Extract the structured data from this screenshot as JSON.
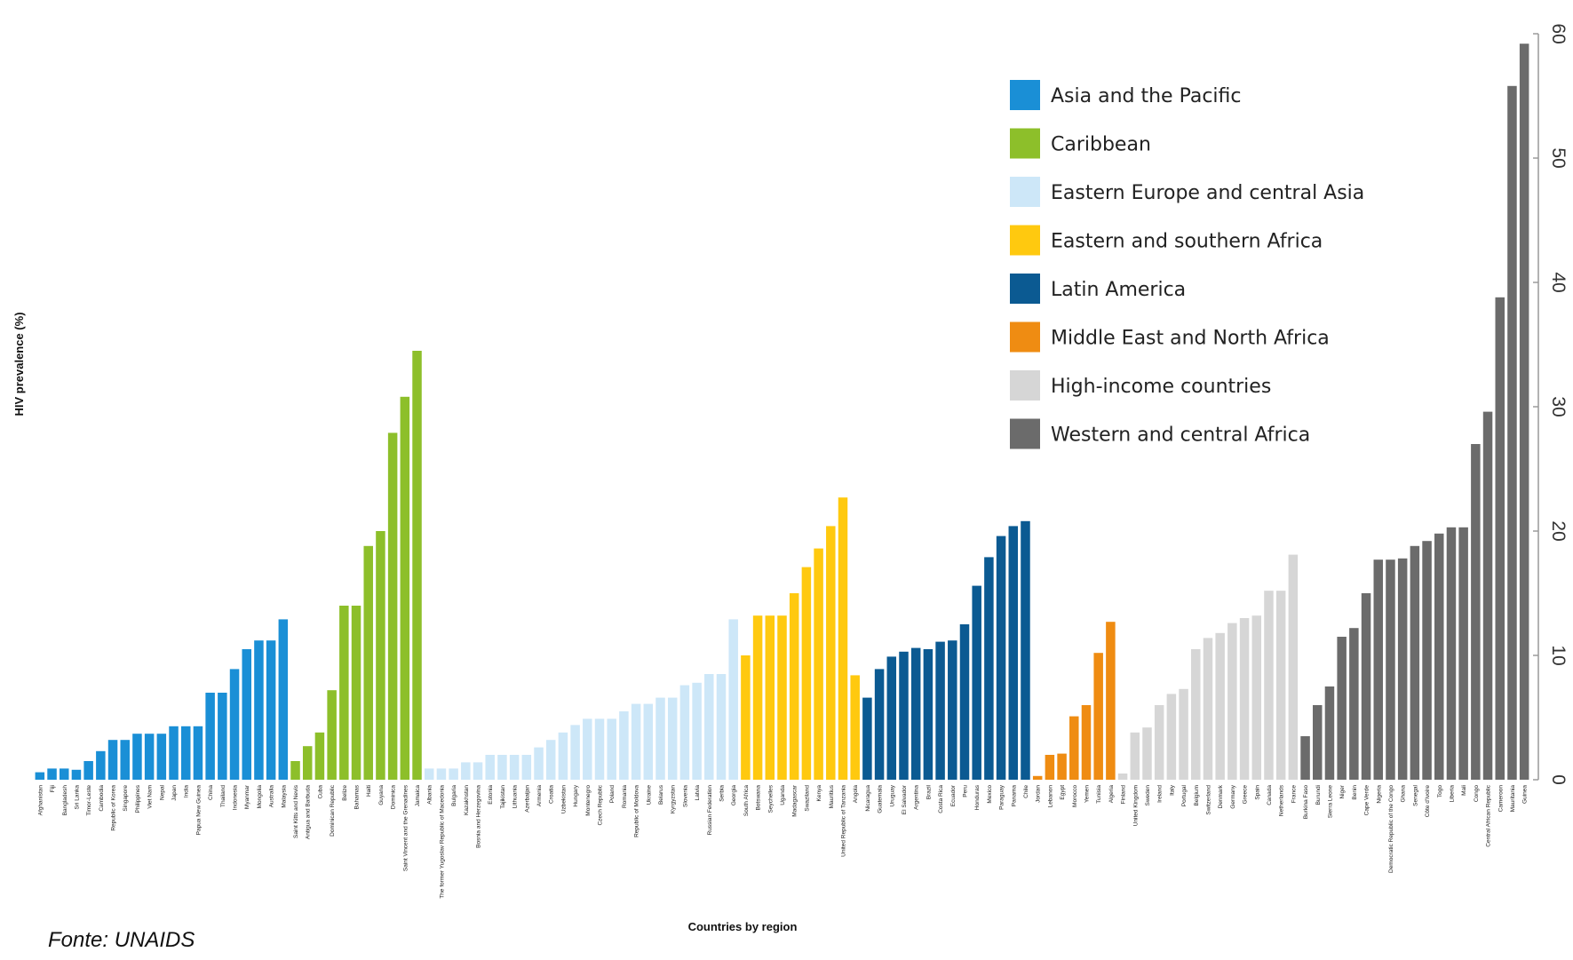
{
  "source_note": "Fonte: UNAIDS",
  "chart_data": {
    "type": "bar",
    "xlabel": "Countries by region",
    "ylabel": "HIV prevalence (%)",
    "ylim": [
      0,
      60
    ],
    "yticks": [
      0,
      10,
      20,
      30,
      40,
      50,
      60
    ],
    "y_axis_position": "right",
    "legend_position": "top-right",
    "grid": false,
    "series": [
      {
        "name": "Asia and the Pacific",
        "color": "#1a8fd6",
        "categories": [
          "Afghanistan",
          "Fiji",
          "Bangladesh",
          "Sri Lanka",
          "Timor-Leste",
          "Cambodia",
          "Republic of Korea",
          "Singapore",
          "Philippines",
          "Viet Nam",
          "Nepal",
          "Japan",
          "India",
          "Papua New Guinea",
          "China",
          "Thailand",
          "Indonesia",
          "Myanmar",
          "Mongolia",
          "Australia",
          "Malaysia"
        ],
        "values": [
          0.6,
          0.9,
          0.9,
          0.8,
          1.5,
          2.3,
          3.2,
          3.2,
          3.7,
          3.7,
          3.7,
          4.3,
          4.3,
          4.3,
          7.0,
          7.0,
          8.9,
          10.5,
          11.2,
          11.2,
          12.9
        ]
      },
      {
        "name": "Caribbean",
        "color": "#8dbf2a",
        "categories": [
          "Saint Kitts and Nevis",
          "Antigua and Barbuda",
          "Cuba",
          "Dominican Republic",
          "Belize",
          "Bahamas",
          "Haiti",
          "Guyana",
          "Dominica",
          "Saint Vincent and the Grenadines",
          "Jamaica"
        ],
        "values": [
          1.5,
          2.7,
          3.8,
          7.2,
          14.0,
          14.0,
          18.8,
          20.0,
          27.9,
          30.8,
          34.5
        ]
      },
      {
        "name": "Eastern Europe and central Asia",
        "color": "#cde7f8",
        "categories": [
          "Albania",
          "The former Yugoslav Republic of Macedonia",
          "Bulgaria",
          "Kazakhstan",
          "Bosnia and Herzegovina",
          "Estonia",
          "Tajikistan",
          "Lithuania",
          "Azerbaijan",
          "Armenia",
          "Croatia",
          "Uzbekistan",
          "Hungary",
          "Montenegro",
          "Czech Republic",
          "Poland",
          "Romania",
          "Republic of Moldova",
          "Ukraine",
          "Belarus",
          "Kyrgyzstan",
          "Slovenia",
          "Latvia",
          "Russian Federation",
          "Serbia",
          "Georgia"
        ],
        "values": [
          0.9,
          0.9,
          0.9,
          1.4,
          1.4,
          2.0,
          2.0,
          2.0,
          2.0,
          2.6,
          3.2,
          3.8,
          4.4,
          4.9,
          4.9,
          4.9,
          5.5,
          6.1,
          6.1,
          6.6,
          6.6,
          7.6,
          7.8,
          8.5,
          8.5,
          12.9
        ]
      },
      {
        "name": "Eastern and southern Africa",
        "color": "#ffc90f",
        "categories": [
          "South Africa",
          "Botswana",
          "Seychelles",
          "Uganda",
          "Madagascar",
          "Swaziland",
          "Kenya",
          "Mauritius",
          "United Republic of Tanzania",
          "Angola"
        ],
        "values": [
          10.0,
          13.2,
          13.2,
          13.2,
          15.0,
          17.1,
          18.6,
          20.4,
          22.7,
          8.4
        ]
      },
      {
        "name": "Latin America",
        "color": "#0b5a92",
        "categories": [
          "Nicaragua",
          "Guatemala",
          "Uruguay",
          "El Salvador",
          "Argentina",
          "Brazil",
          "Costa Rica",
          "Ecuador",
          "Peru",
          "Honduras",
          "Mexico",
          "Paraguay",
          "Panama",
          "Chile"
        ],
        "values": [
          6.6,
          8.9,
          9.9,
          10.3,
          10.6,
          10.5,
          11.1,
          11.2,
          12.5,
          15.6,
          17.9,
          19.6,
          20.4,
          20.8
        ]
      },
      {
        "name": "Middle East and North Africa",
        "color": "#ef8c12",
        "categories": [
          "Jordan",
          "Lebanon",
          "Egypt",
          "Morocco",
          "Yemen",
          "Tunisia",
          "Algeria"
        ],
        "values": [
          0.3,
          2.0,
          2.1,
          5.1,
          6.0,
          10.2,
          12.7
        ]
      },
      {
        "name": "High-income countries",
        "color": "#d6d6d6",
        "categories": [
          "Finland",
          "United Kingdom",
          "Sweden",
          "Ireland",
          "Italy",
          "Portugal",
          "Belgium",
          "Switzerland",
          "Denmark",
          "Germany",
          "Greece",
          "Spain",
          "Canada",
          "Netherlands",
          "France"
        ],
        "values": [
          0.5,
          3.8,
          4.2,
          6.0,
          6.9,
          7.3,
          10.5,
          11.4,
          11.8,
          12.6,
          13.0,
          13.2,
          15.2,
          15.2,
          18.1
        ]
      },
      {
        "name": "Western and central Africa",
        "color": "#6b6b6b",
        "categories": [
          "Burkina Faso",
          "Burundi",
          "Sierra Leone",
          "Niger",
          "Benin",
          "Cape Verde",
          "Nigeria",
          "Democratic Republic of the Congo",
          "Ghana",
          "Senegal",
          "Côte d'Ivoire",
          "Togo",
          "Liberia",
          "Mali",
          "Congo",
          "Central African Republic",
          "Cameroon",
          "Mauritania",
          "Guinea"
        ],
        "values": [
          3.5,
          6.0,
          7.5,
          11.5,
          12.2,
          15.0,
          17.7,
          17.7,
          17.8,
          18.8,
          19.2,
          19.8,
          20.3,
          20.3,
          27.0,
          29.6,
          38.8,
          55.8,
          59.2
        ]
      }
    ]
  }
}
